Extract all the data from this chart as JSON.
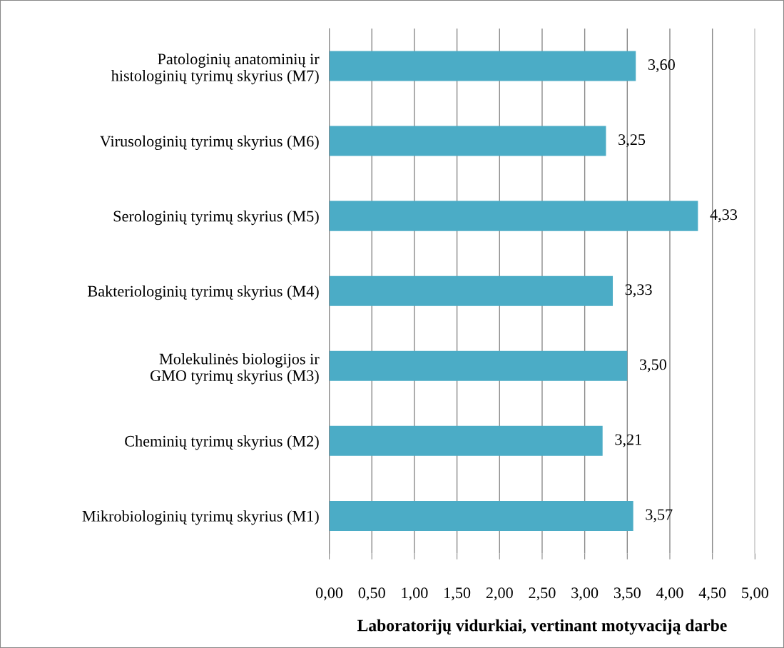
{
  "chart_data": {
    "type": "bar",
    "orientation": "horizontal",
    "xlabel": "Laboratorijų vidurkiai, vertinant motyvaciją darbe",
    "categories": [
      "Patologinių anatominių ir\nhistologinių tyrimų skyrius (M7)",
      "Virusologinių tyrimų skyrius (M6)",
      "Serologinių tyrimų skyrius (M5)",
      "Bakteriologinių tyrimų skyrius (M4)",
      "Molekulinės biologijos ir\nGMO tyrimų skyrius (M3)",
      "Cheminių tyrimų skyrius (M2)",
      "Mikrobiologinių tyrimų skyrius (M1)"
    ],
    "values": [
      3.6,
      3.25,
      4.33,
      3.33,
      3.5,
      3.21,
      3.57
    ],
    "value_labels": [
      "3,60",
      "3,25",
      "4,33",
      "3,33",
      "3,50",
      "3,21",
      "3,57"
    ],
    "color": "#4bacc6",
    "xlim": [
      0,
      5
    ],
    "xticks": [
      {
        "value": 0,
        "label": "0,00"
      },
      {
        "value": 0.5,
        "label": "0,50"
      },
      {
        "value": 1,
        "label": "1,00"
      },
      {
        "value": 1.5,
        "label": "1,50"
      },
      {
        "value": 2,
        "label": "2,00"
      },
      {
        "value": 2.5,
        "label": "2,50"
      },
      {
        "value": 3,
        "label": "3,00"
      },
      {
        "value": 3.5,
        "label": "3,50"
      },
      {
        "value": 4,
        "label": "4,00"
      },
      {
        "value": 4.5,
        "label": "4,50"
      },
      {
        "value": 5,
        "label": "5,00"
      }
    ],
    "grid": "x",
    "legend": false
  }
}
